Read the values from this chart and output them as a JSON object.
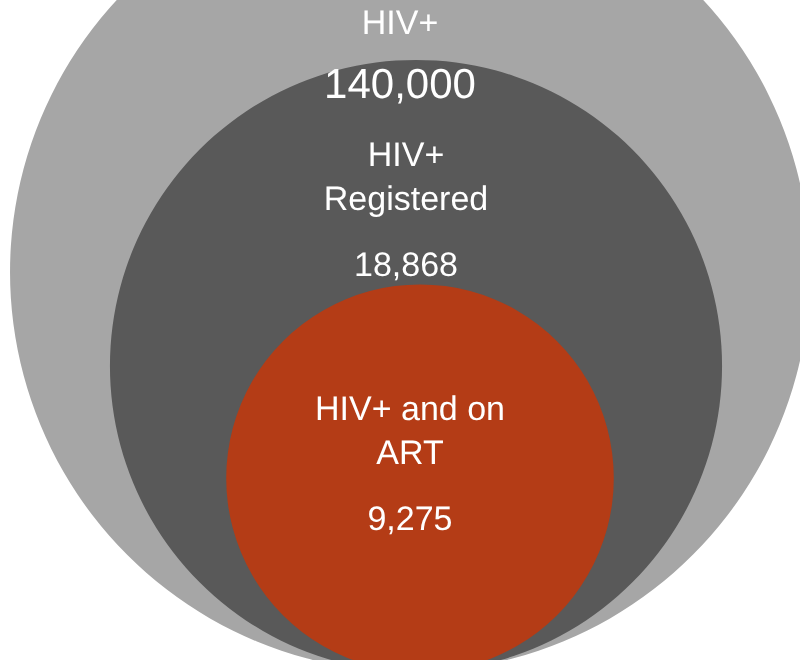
{
  "chart_data": {
    "type": "other",
    "categories": [
      "HIV+",
      "HIV+ Registered",
      "HIV+ and on ART"
    ],
    "values": [
      140000,
      18868,
      9275
    ],
    "value_labels": [
      "140,000",
      "18,868",
      "9,275"
    ],
    "colors": [
      "#a6a6a6",
      "#595959",
      "#b43c16"
    ]
  }
}
